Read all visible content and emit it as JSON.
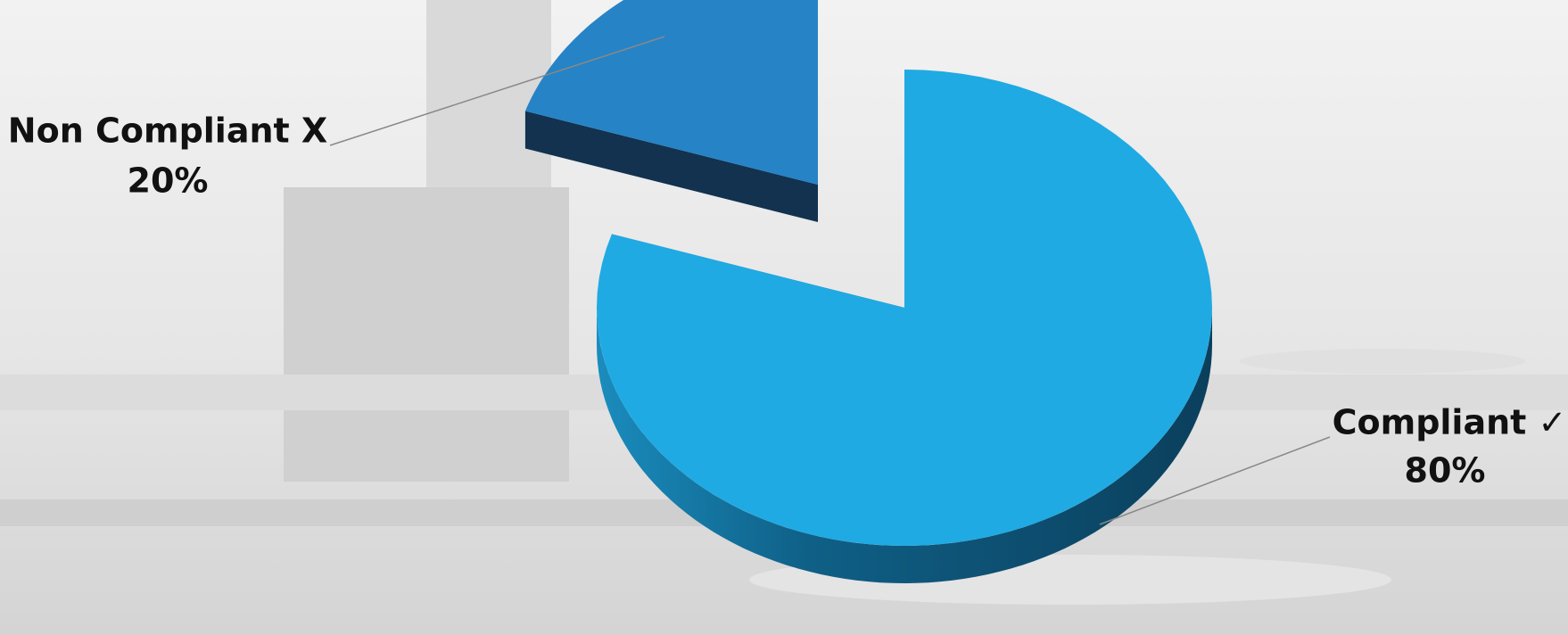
{
  "chart_data": {
    "type": "pie",
    "categories": [
      "Compliant ✓",
      "Non Compliant X"
    ],
    "values": [
      80,
      20
    ],
    "value_labels": [
      "80%",
      "20%"
    ],
    "colors": [
      "#1faae3",
      "#2683c6"
    ],
    "exploded": [
      false,
      true
    ]
  }
}
